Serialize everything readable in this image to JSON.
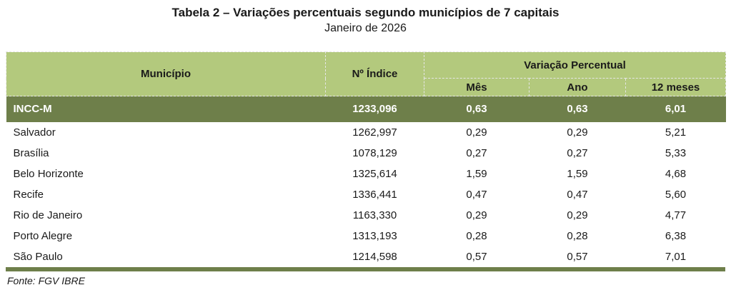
{
  "header": {
    "title": "Tabela 2 – Variações percentuais segundo municípios de 7 capitais",
    "subtitle": "Janeiro de 2026"
  },
  "table": {
    "columns": {
      "municipio": "Município",
      "indice": "Nº Índice",
      "variacao": "Variação Percentual",
      "mes": "Mês",
      "ano": "Ano",
      "meses12": "12 meses"
    },
    "highlight_row": [
      "INCC-M",
      "1233,096",
      "0,63",
      "0,63",
      "6,01"
    ],
    "rows": [
      [
        "Salvador",
        "1262,997",
        "0,29",
        "0,29",
        "5,21"
      ],
      [
        "Brasília",
        "1078,129",
        "0,27",
        "0,27",
        "5,33"
      ],
      [
        "Belo Horizonte",
        "1325,614",
        "1,59",
        "1,59",
        "4,68"
      ],
      [
        "Recife",
        "1336,441",
        "0,47",
        "0,47",
        "5,60"
      ],
      [
        "Rio de Janeiro",
        "1163,330",
        "0,29",
        "0,29",
        "4,77"
      ],
      [
        "Porto Alegre",
        "1313,193",
        "0,28",
        "0,28",
        "6,38"
      ],
      [
        "São Paulo",
        "1214,598",
        "0,57",
        "0,57",
        "7,01"
      ]
    ]
  },
  "footer": {
    "source": "Fonte: FGV IBRE"
  },
  "colors": {
    "header_bg": "#b3c97d",
    "highlight_bg": "#6e7f4a",
    "highlight_text": "#ffffff"
  }
}
